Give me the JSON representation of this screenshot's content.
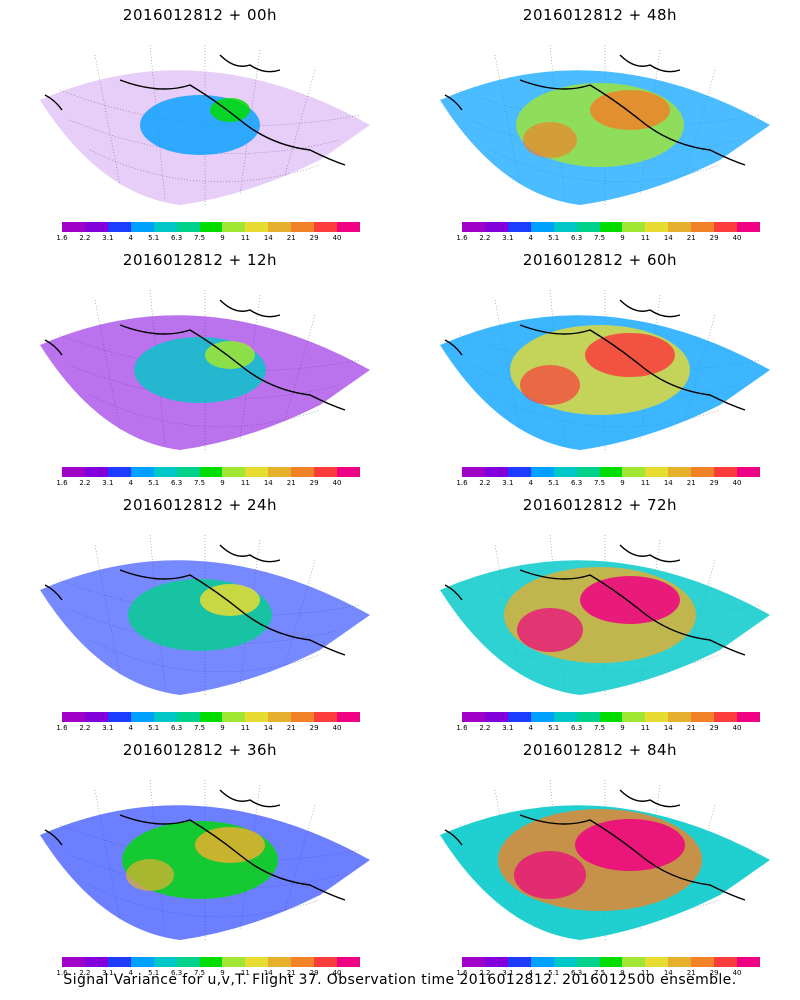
{
  "colorbar": {
    "labels": [
      "1.6",
      "2.2",
      "3.1",
      "4",
      "5.1",
      "6.3",
      "7.5",
      "9",
      "11",
      "14",
      "21",
      "29",
      "40"
    ],
    "colors": [
      "#a000c8",
      "#8200dc",
      "#1e3cff",
      "#00a0ff",
      "#00c8c8",
      "#00d28c",
      "#00dc00",
      "#a0e632",
      "#e6dc32",
      "#e6af2d",
      "#f08228",
      "#fa3c3c",
      "#f00082"
    ]
  },
  "panels": [
    {
      "title": "2016012812 + 00h",
      "intensity": 0
    },
    {
      "title": "2016012812 + 48h",
      "intensity": 4
    },
    {
      "title": "2016012812 + 12h",
      "intensity": 1
    },
    {
      "title": "2016012812 + 60h",
      "intensity": 5
    },
    {
      "title": "2016012812 + 24h",
      "intensity": 2
    },
    {
      "title": "2016012812 + 72h",
      "intensity": 6
    },
    {
      "title": "2016012812 + 36h",
      "intensity": 3
    },
    {
      "title": "2016012812 + 84h",
      "intensity": 7
    }
  ],
  "caption": "Signal Variance for u,v,T. Flight 37. Observation time 2016012812. 2016012500 ensemble."
}
